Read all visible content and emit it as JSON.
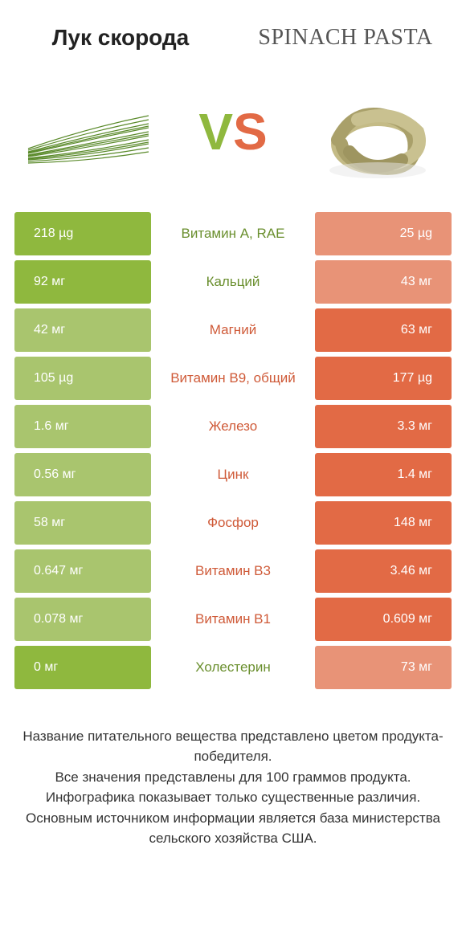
{
  "colors": {
    "green": "#8fb83e",
    "green_dim": "#a9c56e",
    "orange": "#e26a45",
    "orange_dim": "#e89377",
    "mid_green_text": "#6a8f2e",
    "mid_orange_text": "#cf5a38"
  },
  "titles": {
    "left": "Лук скорода",
    "right": "Spinach pasta"
  },
  "vs": {
    "v": "V",
    "s": "S"
  },
  "rows": [
    {
      "left": "218 µg",
      "mid": "Витамин A, RAE",
      "right": "25 µg",
      "winner": "left"
    },
    {
      "left": "92 мг",
      "mid": "Кальций",
      "right": "43 мг",
      "winner": "left"
    },
    {
      "left": "42 мг",
      "mid": "Магний",
      "right": "63 мг",
      "winner": "right"
    },
    {
      "left": "105 µg",
      "mid": "Витамин B9, общий",
      "right": "177 µg",
      "winner": "right"
    },
    {
      "left": "1.6 мг",
      "mid": "Железо",
      "right": "3.3 мг",
      "winner": "right"
    },
    {
      "left": "0.56 мг",
      "mid": "Цинк",
      "right": "1.4 мг",
      "winner": "right"
    },
    {
      "left": "58 мг",
      "mid": "Фосфор",
      "right": "148 мг",
      "winner": "right"
    },
    {
      "left": "0.647 мг",
      "mid": "Витамин B3",
      "right": "3.46 мг",
      "winner": "right"
    },
    {
      "left": "0.078 мг",
      "mid": "Витамин B1",
      "right": "0.609 мг",
      "winner": "right"
    },
    {
      "left": "0 мг",
      "mid": "Холестерин",
      "right": "73 мг",
      "winner": "left"
    }
  ],
  "footer": "Название питательного вещества представлено цветом продукта-победителя.\nВсе значения представлены для 100 граммов продукта.\nИнфографика показывает только существенные различия.\nОсновным источником информации является база министерства сельского хозяйства США."
}
